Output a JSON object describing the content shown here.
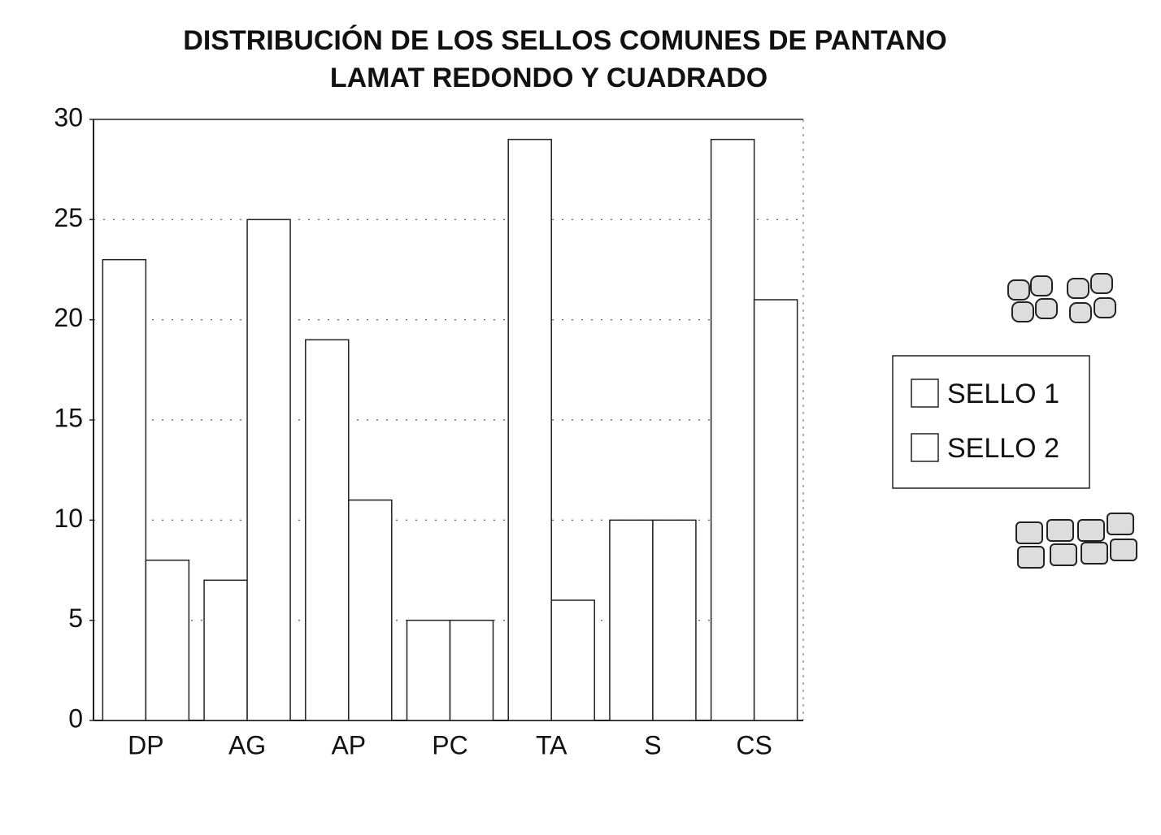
{
  "chart_data": {
    "type": "bar",
    "title": [
      "DISTRIBUCIÓN DE LOS SELLOS COMUNES DE PANTANO",
      "LAMAT REDONDO Y CUADRADO"
    ],
    "categories": [
      "DP",
      "AG",
      "AP",
      "PC",
      "TA",
      "S",
      "CS"
    ],
    "series": [
      {
        "name": "SELLO 1",
        "color": "#ffffff",
        "values": [
          23,
          7,
          19,
          5,
          29,
          10,
          29
        ]
      },
      {
        "name": "SELLO 2",
        "color": "#ffffff",
        "values": [
          8,
          25,
          11,
          5,
          6,
          10,
          21
        ]
      }
    ],
    "ylim": [
      0,
      30
    ],
    "yticks": [
      0,
      5,
      10,
      15,
      20,
      25,
      30
    ],
    "grid": true,
    "legend": "right"
  }
}
